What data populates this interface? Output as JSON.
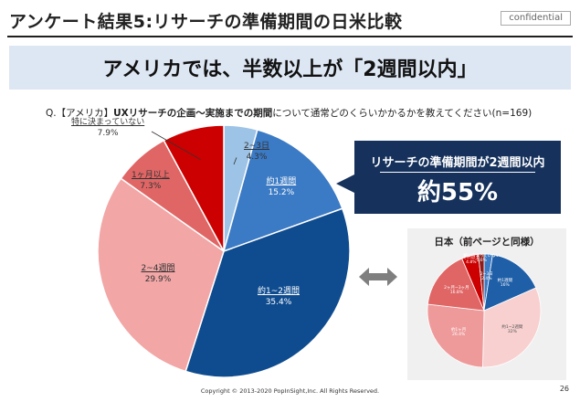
{
  "header": {
    "title": "アンケート結果5:リサーチの準備期間の日米比較",
    "confidential": "confidential"
  },
  "banner": {
    "text": "アメリカでは、半数以上が「2週間以内」"
  },
  "question": {
    "prefix": "Q.【アメリカ】",
    "bold": "UXリサーチの企画〜実施までの期間",
    "suffix": "について通常どのくらいかかるかを教えてください(n=169)"
  },
  "callout": {
    "line1": "リサーチの準備期間が2週間以内",
    "line2": "約55%"
  },
  "japan_panel": {
    "title": "日本（前ページと同様）"
  },
  "footer": {
    "copyright": "Copyright © 2013-2020  PopInSight,Inc.  All Rights Reserved.",
    "page": "26"
  },
  "colors": {
    "banner_bg": "#dde6f3",
    "callout_bg": "#16325c",
    "panel_bg": "#f0f0f0"
  },
  "chart_data": [
    {
      "type": "pie",
      "title": "アメリカ",
      "slices": [
        {
          "label": "2~3日",
          "value": 4.3,
          "display": "4.3%",
          "color": "#9dc3e6"
        },
        {
          "label": "約1週間",
          "value": 15.2,
          "display": "15.2%",
          "color": "#3b7ac4"
        },
        {
          "label": "約1~2週間",
          "value": 35.4,
          "display": "35.4%",
          "color": "#0f4c8f"
        },
        {
          "label": "2~4週間",
          "value": 29.9,
          "display": "29.9%",
          "color": "#f2a6a6"
        },
        {
          "label": "1ヶ月以上",
          "value": 7.3,
          "display": "7.3%",
          "color": "#e06666"
        },
        {
          "label": "特に決まっていない",
          "value": 7.9,
          "display": "7.9%",
          "color": "#cc0000"
        }
      ]
    },
    {
      "type": "pie",
      "title": "日本（前ページと同様）",
      "slices": [
        {
          "label": "2~3日",
          "value": 2.4,
          "display": "2.4%",
          "color": "#3b7ac4"
        },
        {
          "label": "約1週間",
          "value": 16,
          "display": "16%",
          "color": "#1f5fa8"
        },
        {
          "label": "約1~2週間",
          "value": 32,
          "display": "32%",
          "color": "#f8d0d0"
        },
        {
          "label": "約1ヶ月",
          "value": 26.4,
          "display": "26.4%",
          "color": "#ef9a9a"
        },
        {
          "label": "2ヶ月~3ヶ月",
          "value": 16.8,
          "display": "16.8%",
          "color": "#e06666"
        },
        {
          "label": "それ以上",
          "value": 4.8,
          "display": "4.8%",
          "color": "#cc0000"
        },
        {
          "label": "特に決まっていない",
          "value": 1.6,
          "display": "1.6%",
          "color": "#8c1c1c"
        }
      ]
    }
  ]
}
